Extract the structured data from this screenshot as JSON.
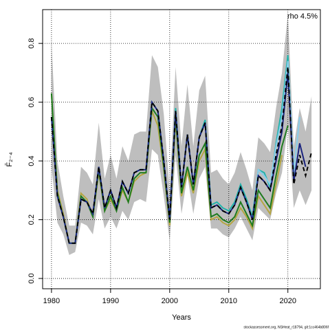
{
  "chart_data": {
    "type": "line",
    "xlabel": "Years",
    "ylabel": "F̄₂₋₄",
    "annotation": "rho 4.5%",
    "footer": "stockassessment.org, NSHeat_r18794, git:1cc464b806f",
    "grid": true,
    "xlim": [
      1978.5,
      2025.5
    ],
    "ylim": [
      -0.035,
      0.915
    ],
    "xticks": [
      1980,
      1990,
      2000,
      2010,
      2020
    ],
    "yticks": [
      {
        "value": 0,
        "label": "0.0"
      },
      0.2,
      0.4,
      0.6,
      0.8
    ],
    "x": [
      1980,
      1981,
      1982,
      1983,
      1984,
      1985,
      1986,
      1987,
      1988,
      1989,
      1990,
      1991,
      1992,
      1993,
      1994,
      1995,
      1996,
      1997,
      1998,
      1999,
      2000,
      2001,
      2002,
      2003,
      2004,
      2005,
      2006,
      2007,
      2008,
      2009,
      2010,
      2011,
      2012,
      2013,
      2014,
      2015,
      2016,
      2017,
      2018,
      2019,
      2020,
      2021,
      2022,
      2023,
      2024
    ],
    "band": {
      "color": "#bebebe",
      "upper": [
        0.8,
        0.4,
        0.28,
        0.18,
        0.18,
        0.38,
        0.36,
        0.32,
        0.53,
        0.34,
        0.42,
        0.34,
        0.45,
        0.4,
        0.49,
        0.5,
        0.5,
        0.76,
        0.72,
        0.56,
        0.3,
        0.72,
        0.45,
        0.66,
        0.45,
        0.64,
        0.69,
        0.36,
        0.37,
        0.34,
        0.32,
        0.36,
        0.43,
        0.37,
        0.3,
        0.48,
        0.46,
        0.43,
        0.58,
        0.7,
        0.9,
        0.45,
        0.58,
        0.5,
        0.62
      ],
      "lower": [
        0.38,
        0.19,
        0.15,
        0.08,
        0.09,
        0.19,
        0.18,
        0.15,
        0.27,
        0.17,
        0.21,
        0.17,
        0.23,
        0.2,
        0.26,
        0.27,
        0.26,
        0.44,
        0.42,
        0.28,
        0.13,
        0.42,
        0.22,
        0.35,
        0.22,
        0.34,
        0.38,
        0.17,
        0.17,
        0.15,
        0.14,
        0.17,
        0.21,
        0.17,
        0.13,
        0.24,
        0.22,
        0.2,
        0.29,
        0.36,
        0.52,
        0.24,
        0.3,
        0.25,
        0.3
      ]
    },
    "series": [
      {
        "color": "#b5a642",
        "values": [
          0.63,
          0.3,
          0.22,
          0.12,
          0.12,
          0.29,
          0.27,
          0.21,
          0.36,
          0.23,
          0.27,
          0.23,
          0.3,
          0.26,
          0.33,
          0.35,
          0.36,
          0.57,
          0.52,
          0.37,
          0.18,
          0.54,
          0.28,
          0.36,
          0.29,
          0.4,
          0.44,
          0.2,
          0.21,
          0.19,
          0.18,
          0.2,
          0.24,
          0.21,
          0.17,
          0.28,
          0.25,
          0.22,
          0.32,
          0.42,
          null,
          null,
          null,
          null,
          null
        ]
      },
      {
        "color": "#1e7b1e",
        "values": [
          0.63,
          0.29,
          0.21,
          0.12,
          0.12,
          0.28,
          0.26,
          0.21,
          0.37,
          0.23,
          0.28,
          0.23,
          0.31,
          0.26,
          0.34,
          0.36,
          0.36,
          0.58,
          0.55,
          0.38,
          0.19,
          0.55,
          0.29,
          0.38,
          0.3,
          0.42,
          0.46,
          0.21,
          0.22,
          0.2,
          0.19,
          0.21,
          0.26,
          0.22,
          0.18,
          0.3,
          0.27,
          0.24,
          0.35,
          0.45,
          0.52,
          null,
          null,
          null,
          null
        ]
      },
      {
        "color": "#20b2aa",
        "values": [
          0.55,
          0.28,
          0.21,
          0.12,
          0.12,
          0.27,
          0.26,
          0.22,
          0.38,
          0.24,
          0.3,
          0.24,
          0.33,
          0.29,
          0.36,
          0.37,
          0.37,
          0.6,
          0.57,
          0.4,
          0.2,
          0.58,
          0.31,
          0.49,
          0.32,
          0.48,
          0.54,
          0.25,
          0.26,
          0.24,
          0.23,
          0.26,
          0.32,
          0.27,
          0.21,
          0.37,
          0.36,
          0.31,
          0.46,
          0.58,
          0.76,
          0.34,
          null,
          null,
          null
        ]
      },
      {
        "color": "#87ceeb",
        "values": [
          0.55,
          0.28,
          0.21,
          0.12,
          0.12,
          0.27,
          0.26,
          0.22,
          0.38,
          0.24,
          0.3,
          0.24,
          0.33,
          0.29,
          0.36,
          0.37,
          0.37,
          0.6,
          0.57,
          0.4,
          0.2,
          0.57,
          0.31,
          0.49,
          0.32,
          0.48,
          0.53,
          0.24,
          0.25,
          0.23,
          0.22,
          0.25,
          0.31,
          0.26,
          0.2,
          0.37,
          0.35,
          0.32,
          0.45,
          0.55,
          0.74,
          0.36,
          0.55,
          null,
          null
        ]
      },
      {
        "color": "#1a237e",
        "values": [
          0.55,
          0.28,
          0.21,
          0.12,
          0.12,
          0.27,
          0.26,
          0.22,
          0.38,
          0.24,
          0.3,
          0.24,
          0.33,
          0.29,
          0.36,
          0.37,
          0.37,
          0.6,
          0.57,
          0.4,
          0.2,
          0.57,
          0.31,
          0.49,
          0.32,
          0.48,
          0.53,
          0.24,
          0.25,
          0.23,
          0.22,
          0.25,
          0.31,
          0.26,
          0.2,
          0.35,
          0.33,
          0.3,
          0.4,
          0.5,
          0.7,
          0.33,
          0.46,
          0.38,
          null
        ]
      },
      {
        "color": "#000000",
        "dashed": true,
        "values": [
          0.55,
          0.28,
          0.21,
          0.12,
          0.12,
          0.27,
          0.26,
          0.22,
          0.38,
          0.24,
          0.3,
          0.24,
          0.33,
          0.29,
          0.36,
          0.37,
          0.37,
          0.6,
          0.57,
          0.4,
          0.2,
          0.57,
          0.31,
          0.49,
          0.32,
          0.48,
          0.53,
          0.24,
          0.25,
          0.23,
          0.22,
          0.25,
          0.31,
          0.26,
          0.2,
          0.35,
          0.33,
          0.3,
          0.42,
          0.52,
          0.72,
          0.32,
          0.42,
          0.35,
          0.43
        ]
      }
    ]
  }
}
